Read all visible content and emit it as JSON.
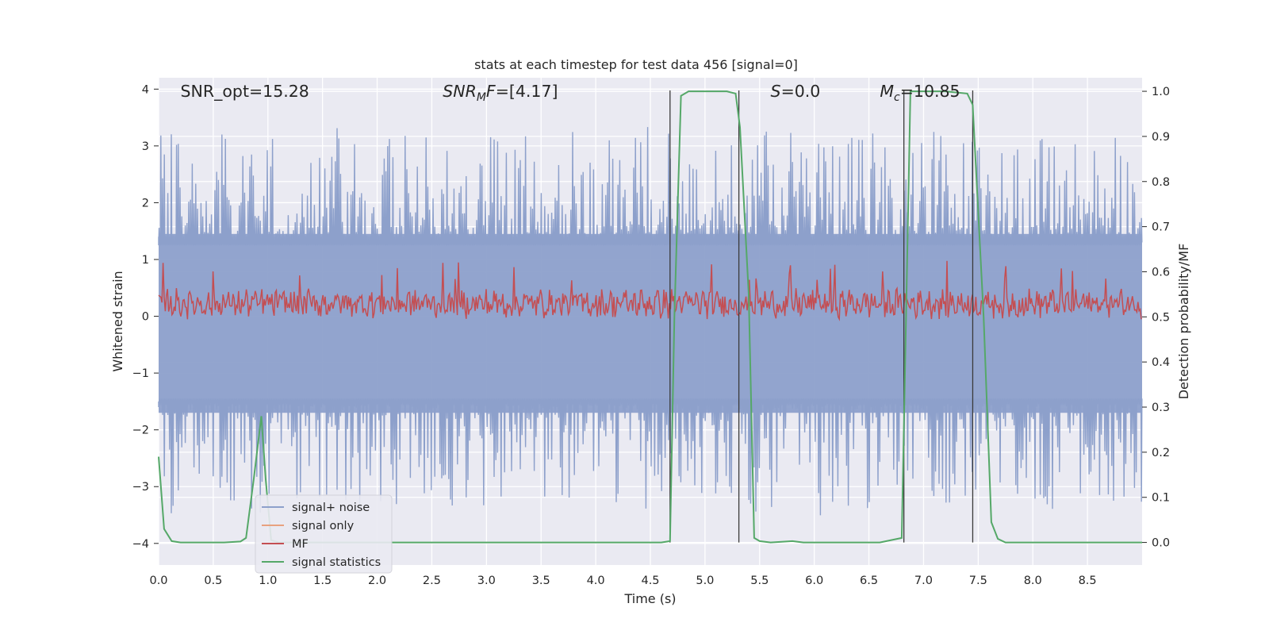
{
  "chart_data": {
    "type": "line",
    "title": "stats at each timestep for test data 456 [signal=0]",
    "xlabel": "Time (s)",
    "ylabel_left": "Whitened strain",
    "ylabel_right": "Detection probability/MF",
    "xlim": [
      0.0,
      9.0
    ],
    "ylim_left": [
      -4.38,
      4.2
    ],
    "ylim_right": [
      -0.05,
      1.03
    ],
    "x_ticks": [
      "0.0",
      "0.5",
      "1.0",
      "1.5",
      "2.0",
      "2.5",
      "3.0",
      "3.5",
      "4.0",
      "4.5",
      "5.0",
      "5.5",
      "6.0",
      "6.5",
      "7.0",
      "7.5",
      "8.0",
      "8.5"
    ],
    "y_ticks_left": [
      "4",
      "3",
      "2",
      "1",
      "0",
      "−1",
      "−2",
      "−3",
      "−4"
    ],
    "y_ticks_right": [
      "1.0",
      "0.9",
      "0.8",
      "0.7",
      "0.6",
      "0.5",
      "0.4",
      "0.3",
      "0.2",
      "0.1",
      "0.0"
    ],
    "grid": true,
    "legend_position": "lower-left",
    "annotations": [
      {
        "key": "snr_opt",
        "text": "SNR_opt=15.28",
        "x": 0.2
      },
      {
        "key": "snr_mf",
        "parts": [
          {
            "t": "SNR",
            "style": "italic"
          },
          {
            "t": "M",
            "style": "italic-sub"
          },
          {
            "t": "F",
            "style": "italic"
          },
          {
            "t": "=[4.17]",
            "style": "normal"
          }
        ],
        "x": 2.6
      },
      {
        "key": "s_value",
        "parts": [
          {
            "t": "S",
            "style": "italic"
          },
          {
            "t": "=0.0",
            "style": "normal"
          }
        ],
        "x": 5.6
      },
      {
        "key": "mc_value",
        "parts": [
          {
            "t": "M",
            "style": "italic"
          },
          {
            "t": "c",
            "style": "italic-sub"
          },
          {
            "t": "=10.85",
            "style": "normal"
          }
        ],
        "x": 6.6
      }
    ],
    "series": [
      {
        "name": "signal+ noise",
        "color": "#8da0cb",
        "axis": "left",
        "description": "whitened noisy strain, dense fluctuation roughly between -3.5 and 3.3"
      },
      {
        "name": "signal only",
        "color": "#e8a17f",
        "axis": "left",
        "values": []
      },
      {
        "name": "MF",
        "color": "#c44e52",
        "axis": "right",
        "description": "matched filter output fluctuating around 0.55 (range ~0.51-0.62)"
      },
      {
        "name": "signal statistics",
        "color": "#55a868",
        "axis": "right",
        "x": [
          0.0,
          0.05,
          0.12,
          0.2,
          0.4,
          0.6,
          0.75,
          0.8,
          0.87,
          0.94,
          0.98,
          1.03,
          1.1,
          2.0,
          3.0,
          4.0,
          4.6,
          4.68,
          4.72,
          4.78,
          4.85,
          5.0,
          5.2,
          5.28,
          5.32,
          5.4,
          5.45,
          5.5,
          5.6,
          5.8,
          5.9,
          6.2,
          6.6,
          6.8,
          6.84,
          6.88,
          6.95,
          7.2,
          7.4,
          7.45,
          7.55,
          7.62,
          7.68,
          7.75,
          8.0,
          8.5,
          9.0
        ],
        "y": [
          0.19,
          0.03,
          0.003,
          0.0,
          0.0,
          0.0,
          0.002,
          0.01,
          0.14,
          0.28,
          0.14,
          0.005,
          0.0,
          0.0,
          0.0,
          0.0,
          0.0,
          0.003,
          0.5,
          0.99,
          1.0,
          1.0,
          1.0,
          0.995,
          0.92,
          0.55,
          0.01,
          0.003,
          0.0,
          0.003,
          0.0,
          0.0,
          0.0,
          0.01,
          0.5,
          1.0,
          1.0,
          1.0,
          0.995,
          0.97,
          0.5,
          0.045,
          0.008,
          0.0,
          0.0,
          0.0,
          0.0
        ]
      }
    ],
    "vertical_lines_x": [
      4.68,
      5.31,
      6.82,
      7.45
    ]
  }
}
